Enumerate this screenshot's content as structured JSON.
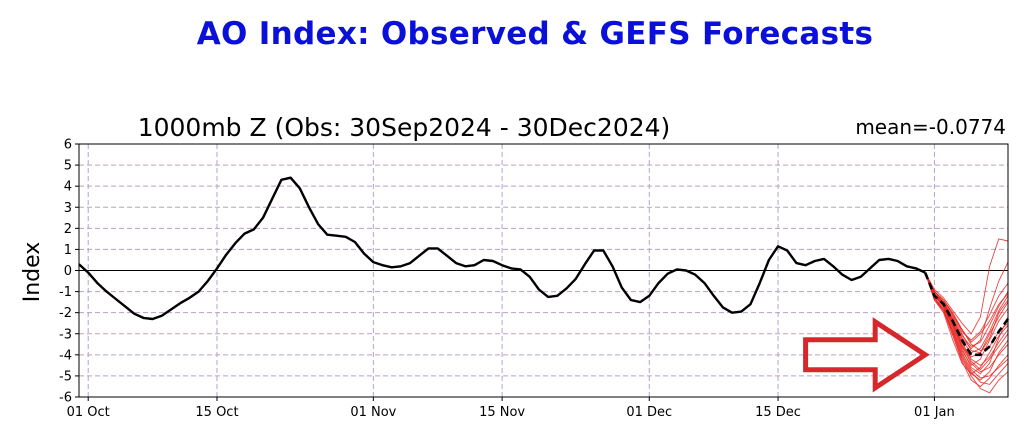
{
  "header": {
    "title": "AO Index: Observed & GEFS Forecasts"
  },
  "chart_data": {
    "type": "line",
    "title": "AO Index: Observed & GEFS Forecasts",
    "subtitle": "1000mb Z (Obs: 30Sep2024 - 30Dec2024)",
    "mean_label": "mean=-0.0774",
    "xlabel": "",
    "ylabel": "Index",
    "ylim": [
      -6,
      6
    ],
    "yticks": [
      -6,
      -5,
      -4,
      -3,
      -2,
      -1,
      0,
      1,
      2,
      3,
      4,
      5,
      6
    ],
    "xlim_days": [
      -1,
      100
    ],
    "xticks": [
      {
        "label": "01 Oct",
        "day": 0
      },
      {
        "label": "15 Oct",
        "day": 14
      },
      {
        "label": "01 Nov",
        "day": 31
      },
      {
        "label": "15 Nov",
        "day": 45
      },
      {
        "label": "01 Dec",
        "day": 61
      },
      {
        "label": "15 Dec",
        "day": 75
      },
      {
        "label": "01 Jan",
        "day": 92
      }
    ],
    "grid": true,
    "observed": {
      "color": "#000000",
      "x_day": [
        -1,
        0,
        1,
        2,
        3,
        4,
        5,
        6,
        7,
        8,
        9,
        10,
        11,
        12,
        13,
        14,
        15,
        16,
        17,
        18,
        19,
        20,
        21,
        22,
        23,
        24,
        25,
        26,
        27,
        28,
        29,
        30,
        31,
        32,
        33,
        34,
        35,
        36,
        37,
        38,
        39,
        40,
        41,
        42,
        43,
        44,
        45,
        46,
        47,
        48,
        49,
        50,
        51,
        52,
        53,
        54,
        55,
        56,
        57,
        58,
        59,
        60,
        61,
        62,
        63,
        64,
        65,
        66,
        67,
        68,
        69,
        70,
        71,
        72,
        73,
        74,
        75,
        76,
        77,
        78,
        79,
        80,
        81,
        82,
        83,
        84,
        85,
        86,
        87,
        88,
        89,
        90,
        91
      ],
      "values": [
        0.3,
        -0.1,
        -0.6,
        -1.0,
        -1.35,
        -1.7,
        -2.05,
        -2.25,
        -2.3,
        -2.15,
        -1.85,
        -1.55,
        -1.3,
        -1.0,
        -0.5,
        0.1,
        0.75,
        1.3,
        1.75,
        1.95,
        2.5,
        3.4,
        4.3,
        4.4,
        3.9,
        3.0,
        2.2,
        1.7,
        1.65,
        1.6,
        1.35,
        0.8,
        0.4,
        0.25,
        0.15,
        0.2,
        0.35,
        0.7,
        1.05,
        1.05,
        0.7,
        0.35,
        0.2,
        0.25,
        0.5,
        0.45,
        0.25,
        0.1,
        0.05,
        -0.3,
        -0.9,
        -1.25,
        -1.2,
        -0.85,
        -0.4,
        0.3,
        0.95,
        0.95,
        0.2,
        -0.8,
        -1.4,
        -1.5,
        -1.2,
        -0.6,
        -0.15,
        0.05,
        0.0,
        -0.2,
        -0.6,
        -1.2,
        -1.75,
        -2.0,
        -1.95,
        -1.6,
        -0.6,
        0.5,
        1.15,
        0.95,
        0.35,
        0.25,
        0.45,
        0.55,
        0.2,
        -0.2,
        -0.45,
        -0.3,
        0.1,
        0.5,
        0.55,
        0.45,
        0.2,
        0.1,
        -0.1
      ]
    },
    "ensemble_mean": {
      "color": "#000000",
      "style": "dashed",
      "x_day": [
        91,
        92,
        93,
        94,
        95,
        96,
        97,
        98,
        99,
        100
      ],
      "values": [
        -0.1,
        -1.2,
        -1.6,
        -2.4,
        -3.3,
        -4.0,
        -4.0,
        -3.6,
        -2.9,
        -2.3
      ]
    },
    "ensemble_members": {
      "color": "#e8251f",
      "x_day": [
        91,
        92,
        93,
        94,
        95,
        96,
        97,
        98,
        99,
        100
      ],
      "series": [
        [
          -0.1,
          -1.0,
          -1.4,
          -2.0,
          -2.8,
          -3.4,
          -3.0,
          -2.4,
          -1.6,
          -1.1
        ],
        [
          -0.1,
          -1.2,
          -1.7,
          -2.6,
          -3.6,
          -4.4,
          -4.8,
          -4.6,
          -4.0,
          -3.5
        ],
        [
          -0.1,
          -0.9,
          -1.3,
          -1.9,
          -2.5,
          -3.0,
          -2.2,
          0.2,
          1.5,
          1.4
        ],
        [
          -0.1,
          -1.3,
          -1.9,
          -3.0,
          -4.2,
          -5.0,
          -5.6,
          -5.8,
          -5.2,
          -4.8
        ],
        [
          -0.1,
          -1.1,
          -1.5,
          -2.2,
          -3.0,
          -3.8,
          -3.9,
          -3.2,
          -2.0,
          -1.4
        ],
        [
          -0.1,
          -1.4,
          -2.0,
          -3.3,
          -4.4,
          -4.9,
          -4.6,
          -3.9,
          -3.1,
          -2.6
        ],
        [
          -0.1,
          -1.0,
          -1.5,
          -2.3,
          -3.2,
          -3.7,
          -3.3,
          -1.8,
          -0.5,
          0.4
        ],
        [
          -0.1,
          -1.2,
          -1.6,
          -2.5,
          -3.4,
          -4.2,
          -4.5,
          -4.1,
          -3.4,
          -2.8
        ],
        [
          -0.1,
          -1.3,
          -1.8,
          -2.8,
          -3.9,
          -4.7,
          -5.1,
          -5.0,
          -4.6,
          -4.2
        ],
        [
          -0.1,
          -1.1,
          -1.6,
          -2.4,
          -3.3,
          -3.9,
          -3.7,
          -2.9,
          -1.9,
          -1.2
        ],
        [
          -0.1,
          -1.2,
          -1.7,
          -2.7,
          -3.8,
          -4.5,
          -4.2,
          -3.3,
          -2.4,
          -1.8
        ],
        [
          -0.1,
          -1.0,
          -1.4,
          -2.1,
          -2.9,
          -3.3,
          -2.9,
          -2.1,
          -1.2,
          -0.6
        ],
        [
          -0.1,
          -1.3,
          -1.8,
          -2.9,
          -4.0,
          -4.8,
          -5.3,
          -5.4,
          -4.9,
          -4.4
        ],
        [
          -0.1,
          -1.2,
          -1.6,
          -2.3,
          -3.1,
          -3.6,
          -3.4,
          -2.6,
          -1.7,
          -1.0
        ],
        [
          -0.1,
          -1.1,
          -1.5,
          -2.4,
          -3.5,
          -4.3,
          -4.7,
          -4.2,
          -3.6,
          -3.0
        ],
        [
          -0.1,
          -1.4,
          -1.9,
          -3.1,
          -4.3,
          -5.2,
          -5.5,
          -5.1,
          -4.5,
          -4.0
        ],
        [
          -0.1,
          -1.0,
          -1.4,
          -2.1,
          -2.8,
          -3.5,
          -3.8,
          -3.6,
          -2.9,
          -2.5
        ],
        [
          -0.1,
          -1.2,
          -1.7,
          -2.6,
          -3.7,
          -4.6,
          -4.9,
          -4.4,
          -3.2,
          -2.2
        ],
        [
          -0.1,
          -1.1,
          -1.6,
          -2.5,
          -3.6,
          -4.1,
          -3.9,
          -3.0,
          -2.2,
          -1.5
        ],
        [
          -0.1,
          -1.3,
          -1.9,
          -2.9,
          -4.1,
          -4.9,
          -5.2,
          -4.8,
          -3.9,
          -3.3
        ]
      ]
    },
    "annotation": {
      "type": "arrow",
      "color": "#d6282a",
      "from_day": 78,
      "to_day": 91,
      "y": -4.0
    }
  }
}
